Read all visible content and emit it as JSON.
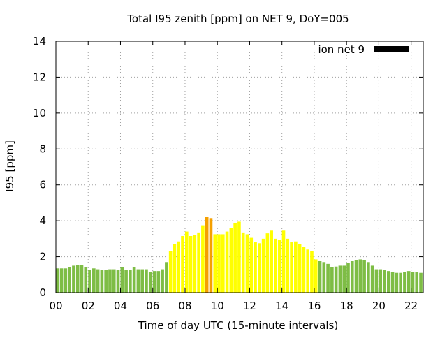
{
  "chart_data": {
    "type": "bar",
    "title": "Total I95 zenith [ppm] on NET 9, DoY=005",
    "xlabel": "Time of day UTC (15-minute intervals)",
    "ylabel": "I95 [ppm]",
    "ylim": [
      0,
      14
    ],
    "xlim": [
      0,
      22.75
    ],
    "yticks": [
      "0",
      "2",
      "4",
      "6",
      "8",
      "10",
      "12",
      "14"
    ],
    "xticks": [
      "00",
      "02",
      "04",
      "06",
      "08",
      "10",
      "12",
      "14",
      "16",
      "18",
      "20",
      "22"
    ],
    "grid": true,
    "legend": {
      "position": "top-right",
      "entries": [
        {
          "label": "ion net 9",
          "color": "#000000"
        }
      ]
    },
    "bar_width_hours": 0.2,
    "colors": {
      "low": "#7ebd45",
      "medium": "#ffff00",
      "high": "#f5a000"
    },
    "series": [
      {
        "x": [
          0,
          0.25,
          0.5,
          0.75,
          1,
          1.25,
          1.5,
          1.75,
          2,
          2.25,
          2.5,
          2.75,
          3,
          3.25,
          3.5,
          3.75,
          4,
          4.25,
          4.5,
          4.75,
          5,
          5.25,
          5.5,
          5.75,
          6,
          6.25,
          6.5,
          6.75,
          7,
          7.25,
          7.5,
          7.75,
          8,
          8.25,
          8.5,
          8.75,
          9,
          9.25,
          9.5,
          9.75,
          10,
          10.25,
          10.5,
          10.75,
          11,
          11.25,
          11.5,
          11.75,
          12,
          12.25,
          12.5,
          12.75,
          13,
          13.25,
          13.5,
          13.75,
          14,
          14.25,
          14.5,
          14.75,
          15,
          15.25,
          15.5,
          15.75,
          16,
          16.25,
          16.5,
          16.75,
          17,
          17.25,
          17.5,
          17.75,
          18,
          18.25,
          18.5,
          18.75,
          19,
          19.25,
          19.5,
          19.75,
          20,
          20.25,
          20.5,
          20.75,
          21,
          21.25,
          21.5,
          21.75,
          22,
          22.25,
          22.5
        ],
        "values": [
          1.35,
          1.35,
          1.35,
          1.4,
          1.5,
          1.55,
          1.55,
          1.4,
          1.25,
          1.35,
          1.3,
          1.25,
          1.25,
          1.3,
          1.3,
          1.25,
          1.4,
          1.25,
          1.25,
          1.4,
          1.3,
          1.3,
          1.3,
          1.15,
          1.2,
          1.2,
          1.3,
          1.7,
          2.3,
          2.7,
          2.85,
          3.15,
          3.4,
          3.15,
          3.2,
          3.35,
          3.75,
          4.2,
          4.15,
          3.25,
          3.25,
          3.25,
          3.4,
          3.6,
          3.85,
          3.95,
          3.35,
          3.25,
          3.05,
          2.8,
          2.75,
          3.0,
          3.3,
          3.45,
          3.0,
          2.95,
          3.45,
          3.0,
          2.8,
          2.85,
          2.7,
          2.55,
          2.4,
          2.3,
          1.85,
          1.75,
          1.7,
          1.6,
          1.4,
          1.45,
          1.5,
          1.5,
          1.65,
          1.75,
          1.8,
          1.85,
          1.8,
          1.7,
          1.5,
          1.3,
          1.3,
          1.25,
          1.2,
          1.15,
          1.1,
          1.1,
          1.15,
          1.2,
          1.15,
          1.15,
          1.1
        ]
      }
    ]
  }
}
